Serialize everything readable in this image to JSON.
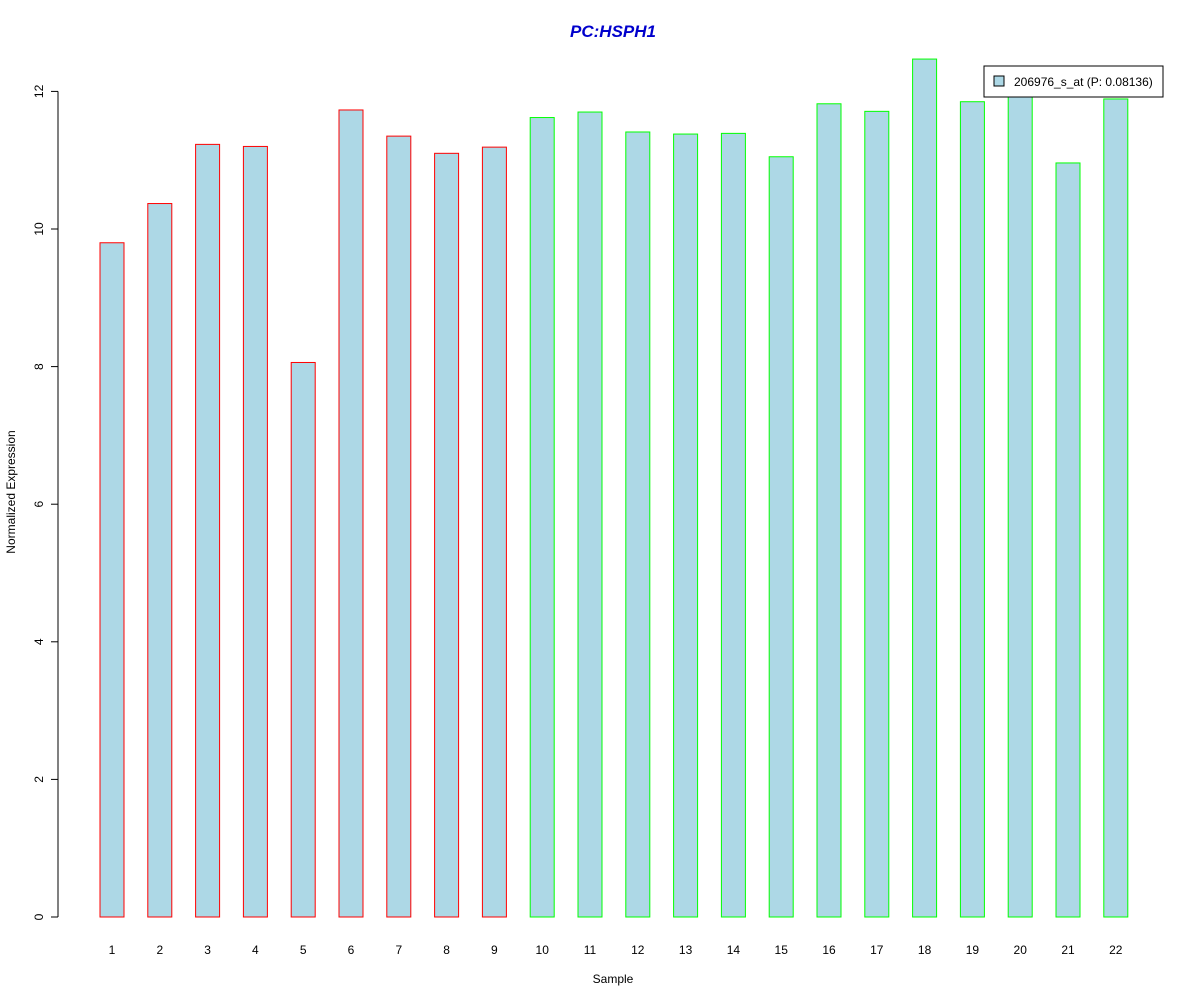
{
  "chart_data": {
    "type": "bar",
    "title": "PC:HSPH1",
    "xlabel": "Sample",
    "ylabel": "Normalized Expression",
    "ylim": [
      0,
      12.5
    ],
    "yticks": [
      0,
      2,
      4,
      6,
      8,
      10,
      12
    ],
    "grid": false,
    "legend_position": "top-right",
    "fill_color": "#add8e6",
    "categories": [
      "1",
      "2",
      "3",
      "4",
      "5",
      "6",
      "7",
      "8",
      "9",
      "10",
      "11",
      "12",
      "13",
      "14",
      "15",
      "16",
      "17",
      "18",
      "19",
      "20",
      "21",
      "22"
    ],
    "series": [
      {
        "name": "206976_s_at (P: 0.08136)",
        "values": [
          9.8,
          10.37,
          11.23,
          11.2,
          8.06,
          11.73,
          11.35,
          11.1,
          11.19,
          11.62,
          11.7,
          11.41,
          11.38,
          11.39,
          11.05,
          11.82,
          11.71,
          12.47,
          11.85,
          12.0,
          10.96,
          11.89
        ]
      }
    ],
    "groups": [
      {
        "border_color": "#ff0000",
        "count": 9
      },
      {
        "border_color": "#00ff00",
        "count": 13
      }
    ],
    "title_color": "#0000cc",
    "border_colors": [
      "#ff0000",
      "#ff0000",
      "#ff0000",
      "#ff0000",
      "#ff0000",
      "#ff0000",
      "#ff0000",
      "#ff0000",
      "#ff0000",
      "#00ff00",
      "#00ff00",
      "#00ff00",
      "#00ff00",
      "#00ff00",
      "#00ff00",
      "#00ff00",
      "#00ff00",
      "#00ff00",
      "#00ff00",
      "#00ff00",
      "#00ff00",
      "#00ff00"
    ]
  }
}
